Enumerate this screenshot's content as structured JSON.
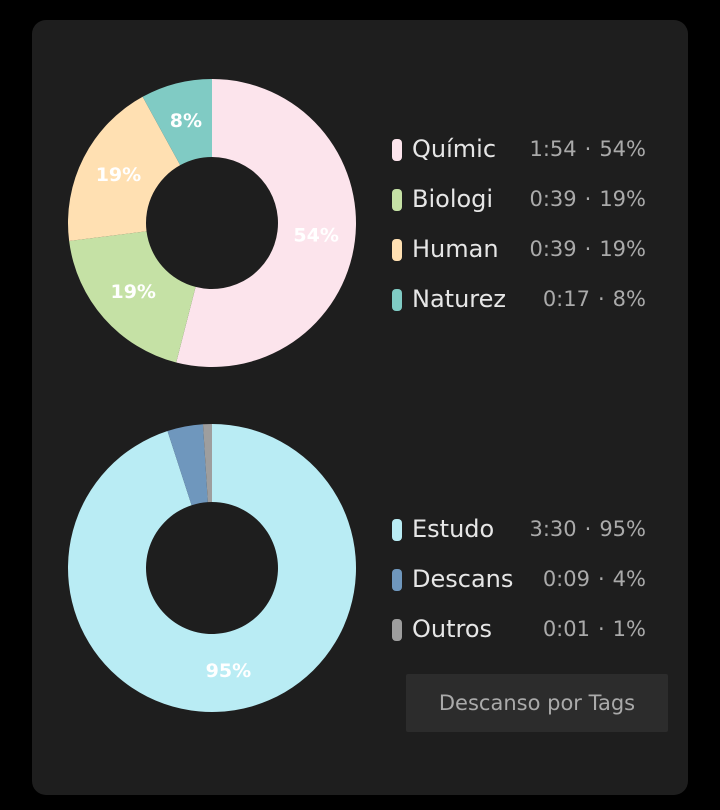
{
  "chart_data": [
    {
      "type": "pie",
      "donut": true,
      "categories": [
        "Químic",
        "Biologi",
        "Human",
        "Naturez"
      ],
      "values": [
        54,
        19,
        19,
        8
      ],
      "value_labels": [
        "54%",
        "19%",
        "19%",
        "8%"
      ],
      "durations": [
        "1:54",
        "0:39",
        "0:39",
        "0:17"
      ],
      "separator": "·",
      "colors": [
        "#fce4ec",
        "#c5e1a5",
        "#ffe0b2",
        "#80cbc4"
      ]
    },
    {
      "type": "pie",
      "donut": true,
      "categories": [
        "Estudo",
        "Descans",
        "Outros"
      ],
      "values": [
        95,
        4,
        1
      ],
      "value_labels": [
        "95%",
        "4%",
        "1%"
      ],
      "durations": [
        "3:30",
        "0:09",
        "0:01"
      ],
      "separator": "·",
      "colors": [
        "#b9ecf4",
        "#6f97bd",
        "#9e9e9e"
      ]
    }
  ],
  "button": {
    "label": "Descanso por Tags"
  }
}
